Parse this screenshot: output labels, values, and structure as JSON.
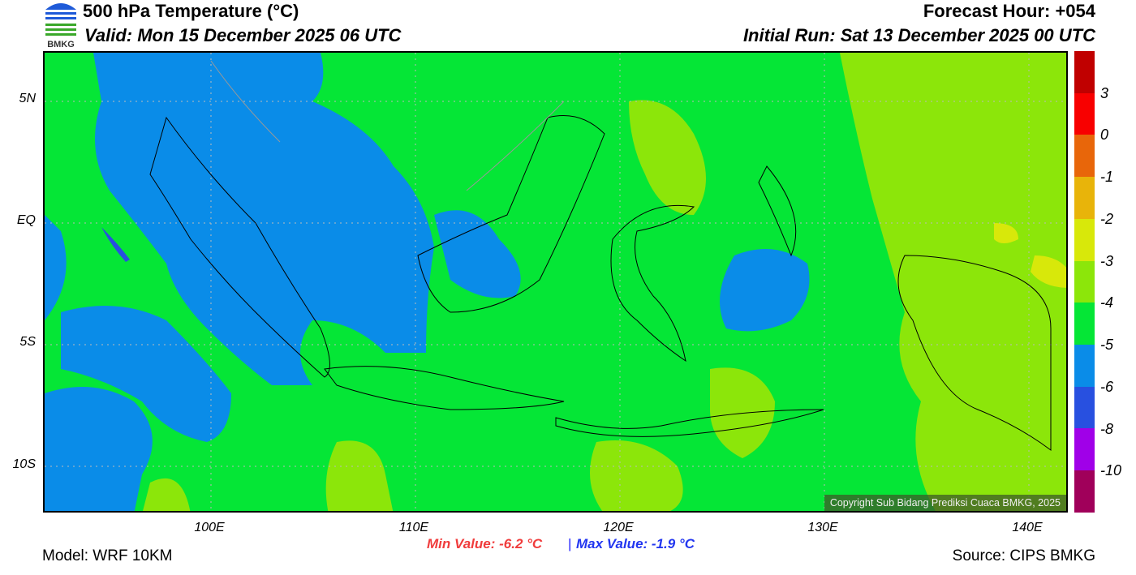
{
  "header": {
    "title": "500 hPa Temperature (°C)",
    "valid": "Valid: Mon 15 December 2025 06 UTC",
    "forecast_hour": "Forecast Hour: +054",
    "initial_run": "Initial Run: Sat 13 December 2025 00 UTC",
    "logo_text": "BMKG"
  },
  "axes": {
    "lat_labels": [
      "5N",
      "EQ",
      "5S",
      "10S"
    ],
    "lon_labels": [
      "100E",
      "110E",
      "120E",
      "130E",
      "140E"
    ]
  },
  "colorbar": {
    "labels": [
      "3",
      "0",
      "-1",
      "-2",
      "-3",
      "-4",
      "-5",
      "-6",
      "-8",
      "-10"
    ],
    "colors": [
      "#c00000",
      "#f80000",
      "#e8660a",
      "#e8b40a",
      "#d8e80a",
      "#8ce60a",
      "#05e636",
      "#0a8ce8",
      "#2850e0",
      "#a000e8",
      "#a0005a"
    ]
  },
  "footer": {
    "min_value": "Min Value: -6.2 °C",
    "separator": "|",
    "max_value": "Max Value: -1.9 °C",
    "model": "Model: WRF 10KM",
    "source": "Source: CIPS BMKG",
    "copyright": "Copyright Sub Bidang Prediksi Cuaca BMKG, 2025"
  }
}
